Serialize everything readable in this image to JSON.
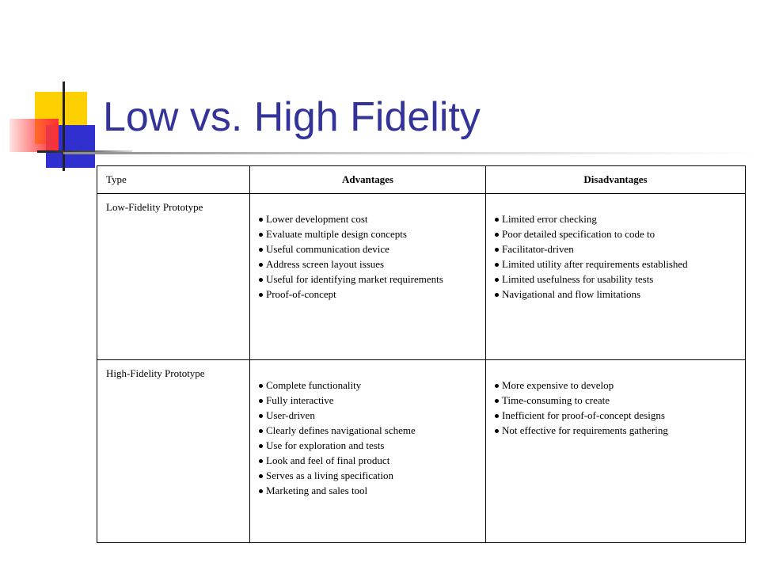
{
  "slide": {
    "title": "Low vs. High Fidelity"
  },
  "table": {
    "headers": {
      "type": "Type",
      "advantages": "Advantages",
      "disadvantages": "Disadvantages"
    },
    "rows": [
      {
        "type": "Low-Fidelity Prototype",
        "advantages": [
          "Lower development cost",
          "Evaluate multiple design concepts",
          "Useful communication device",
          "Address screen layout issues",
          "Useful for identifying market requirements",
          "Proof-of-concept"
        ],
        "disadvantages": [
          "Limited error checking",
          "Poor detailed specification to code to",
          "Facilitator-driven",
          "Limited utility after requirements established",
          "Limited usefulness for usability tests",
          "Navigational and flow limitations"
        ]
      },
      {
        "type": "High-Fidelity Prototype",
        "advantages": [
          "Complete functionality",
          "Fully interactive",
          "User-driven",
          "Clearly defines navigational scheme",
          "Use for exploration and tests",
          "Look and feel of final product",
          "Serves as a living specification",
          "Marketing and sales tool"
        ],
        "disadvantages": [
          "More expensive to develop",
          "Time-consuming to create",
          "Inefficient for proof-of-concept designs",
          "Not effective for requirements gathering"
        ]
      }
    ]
  },
  "colors": {
    "title": "#33339a",
    "accent_yellow": "#ffd000",
    "accent_blue": "#3030d0",
    "accent_red": "#ff3030"
  }
}
